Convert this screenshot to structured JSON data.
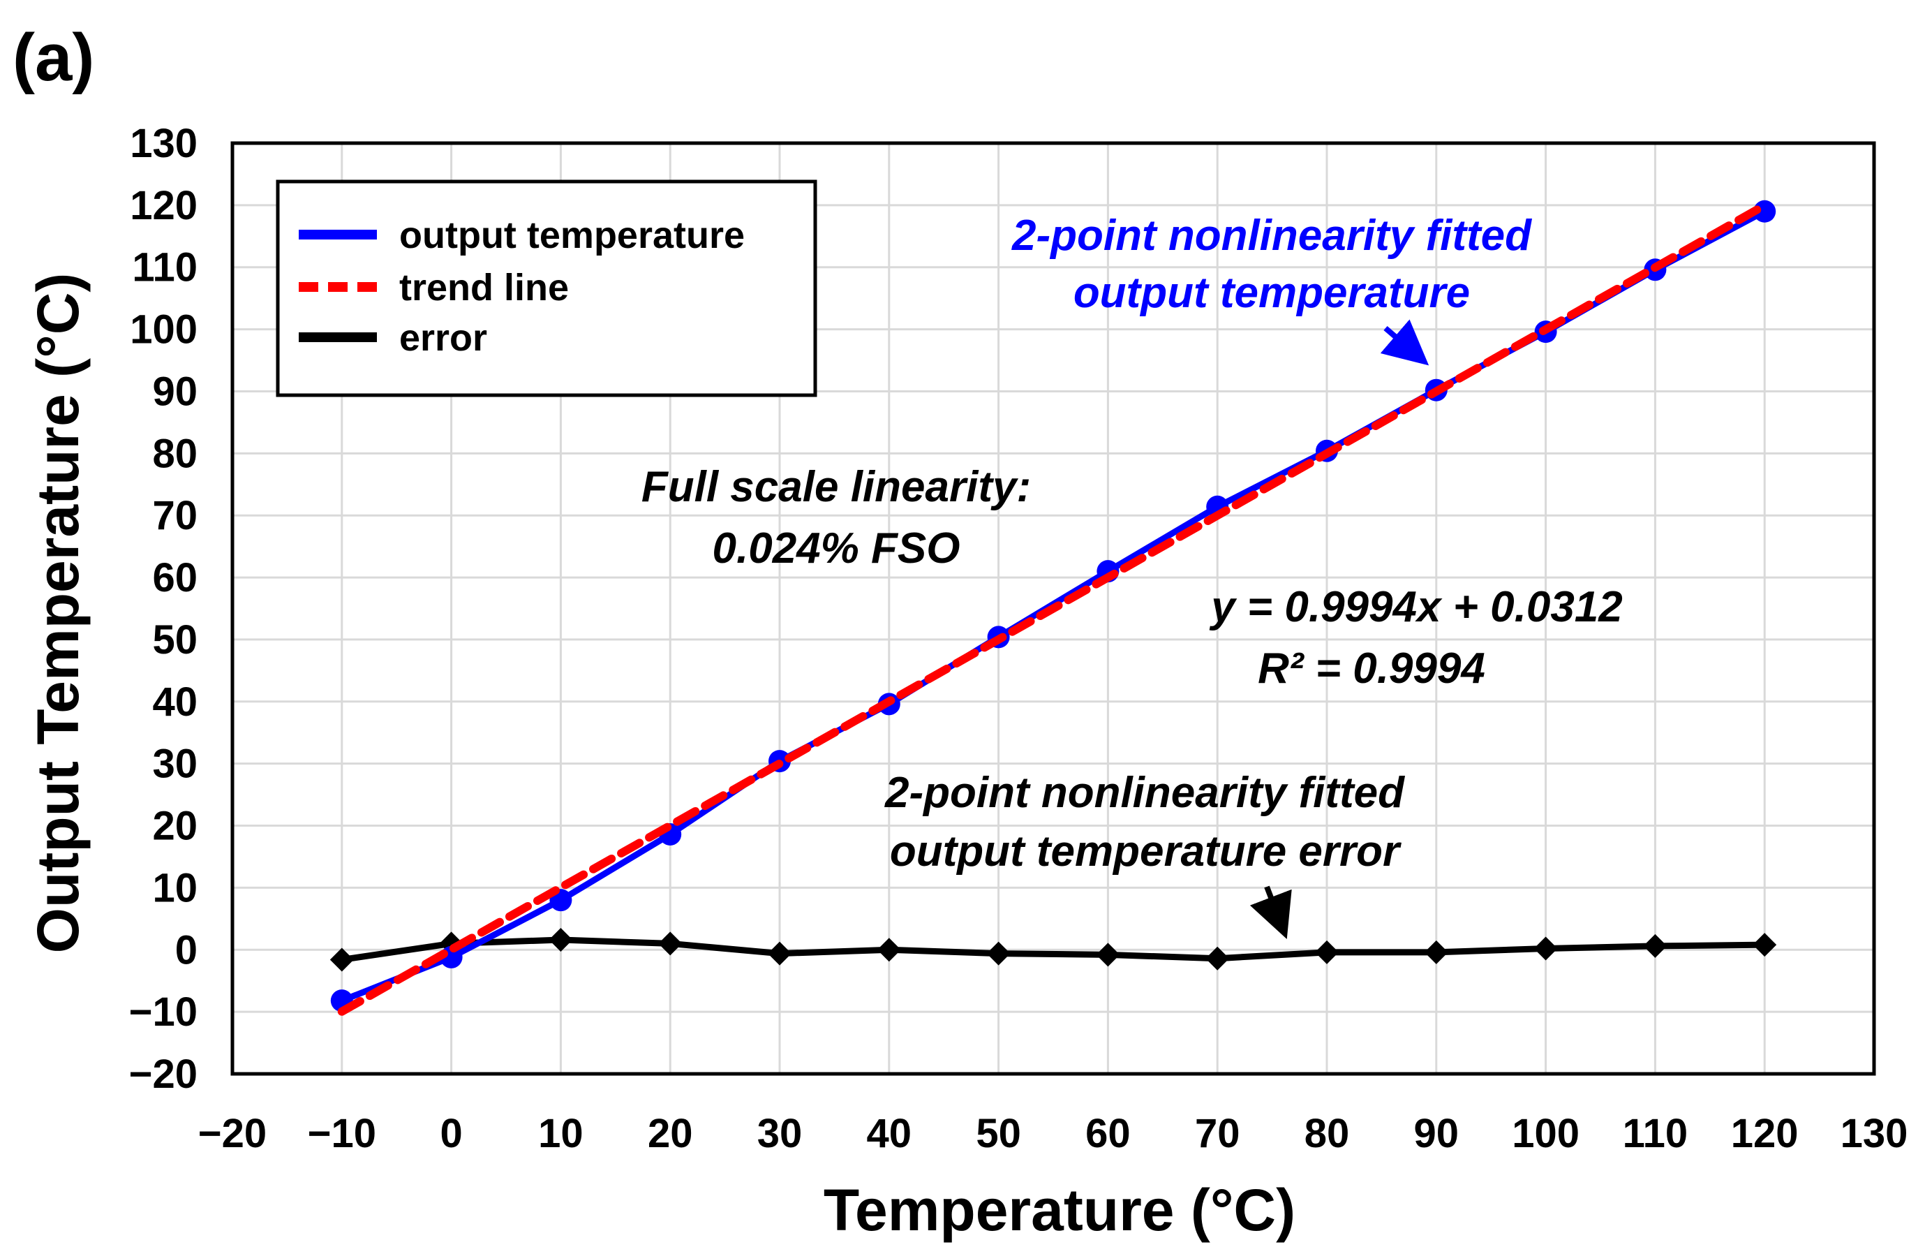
{
  "panel_label": "(a)",
  "chart_data": {
    "type": "line",
    "xlabel": "Temperature (°C)",
    "ylabel": "Output Temperature (°C)",
    "xlim": [
      -20,
      130
    ],
    "ylim": [
      -20,
      130
    ],
    "x_ticks": [
      -20,
      -10,
      0,
      10,
      20,
      30,
      40,
      50,
      60,
      70,
      80,
      90,
      100,
      110,
      120,
      130
    ],
    "y_ticks": [
      -20,
      -10,
      0,
      10,
      20,
      30,
      40,
      50,
      60,
      70,
      80,
      90,
      100,
      110,
      120,
      130
    ],
    "x_tick_labels": [
      "−20",
      "−10",
      "0",
      "10",
      "20",
      "30",
      "40",
      "50",
      "60",
      "70",
      "80",
      "90",
      "100",
      "110",
      "120",
      "130"
    ],
    "y_tick_labels": [
      "−20",
      "−10",
      "0",
      "10",
      "20",
      "30",
      "40",
      "50",
      "60",
      "70",
      "80",
      "90",
      "100",
      "110",
      "120",
      "130"
    ],
    "grid": true,
    "x": [
      -10,
      0,
      10,
      20,
      30,
      40,
      50,
      60,
      70,
      80,
      90,
      100,
      110,
      120
    ],
    "series": [
      {
        "name": "output temperature",
        "color": "#0000ff",
        "style": "solid",
        "marker": "circle",
        "values": [
          -8.2,
          -1.2,
          8.0,
          18.6,
          30.4,
          39.6,
          50.4,
          61.0,
          71.4,
          80.4,
          90.2,
          99.6,
          109.6,
          119.0
        ]
      },
      {
        "name": "trend line",
        "color": "#ff0000",
        "style": "dashed",
        "marker": "none",
        "values": [
          -9.96,
          0.03,
          10.03,
          20.02,
          30.01,
          40.01,
          50.0,
          60.0,
          69.99,
          79.98,
          89.98,
          99.97,
          109.96,
          119.96
        ]
      },
      {
        "name": "error",
        "color": "#000000",
        "style": "solid",
        "marker": "diamond",
        "values": [
          -1.6,
          1.0,
          1.6,
          1.0,
          -0.6,
          0.0,
          -0.6,
          -0.8,
          -1.4,
          -0.4,
          -0.4,
          0.2,
          0.6,
          0.8
        ]
      }
    ],
    "legend_position": "top-left",
    "annotations": {
      "blue_line1": "2-point nonlinearity fitted",
      "blue_line2": "output temperature",
      "linearity_line1": "Full scale linearity:",
      "linearity_line2": "0.024% FSO",
      "equation": "y = 0.9994x + 0.0312",
      "r_squared": "R² = 0.9994",
      "error_line1": "2-point nonlinearity fitted",
      "error_line2": "output temperature error"
    }
  }
}
